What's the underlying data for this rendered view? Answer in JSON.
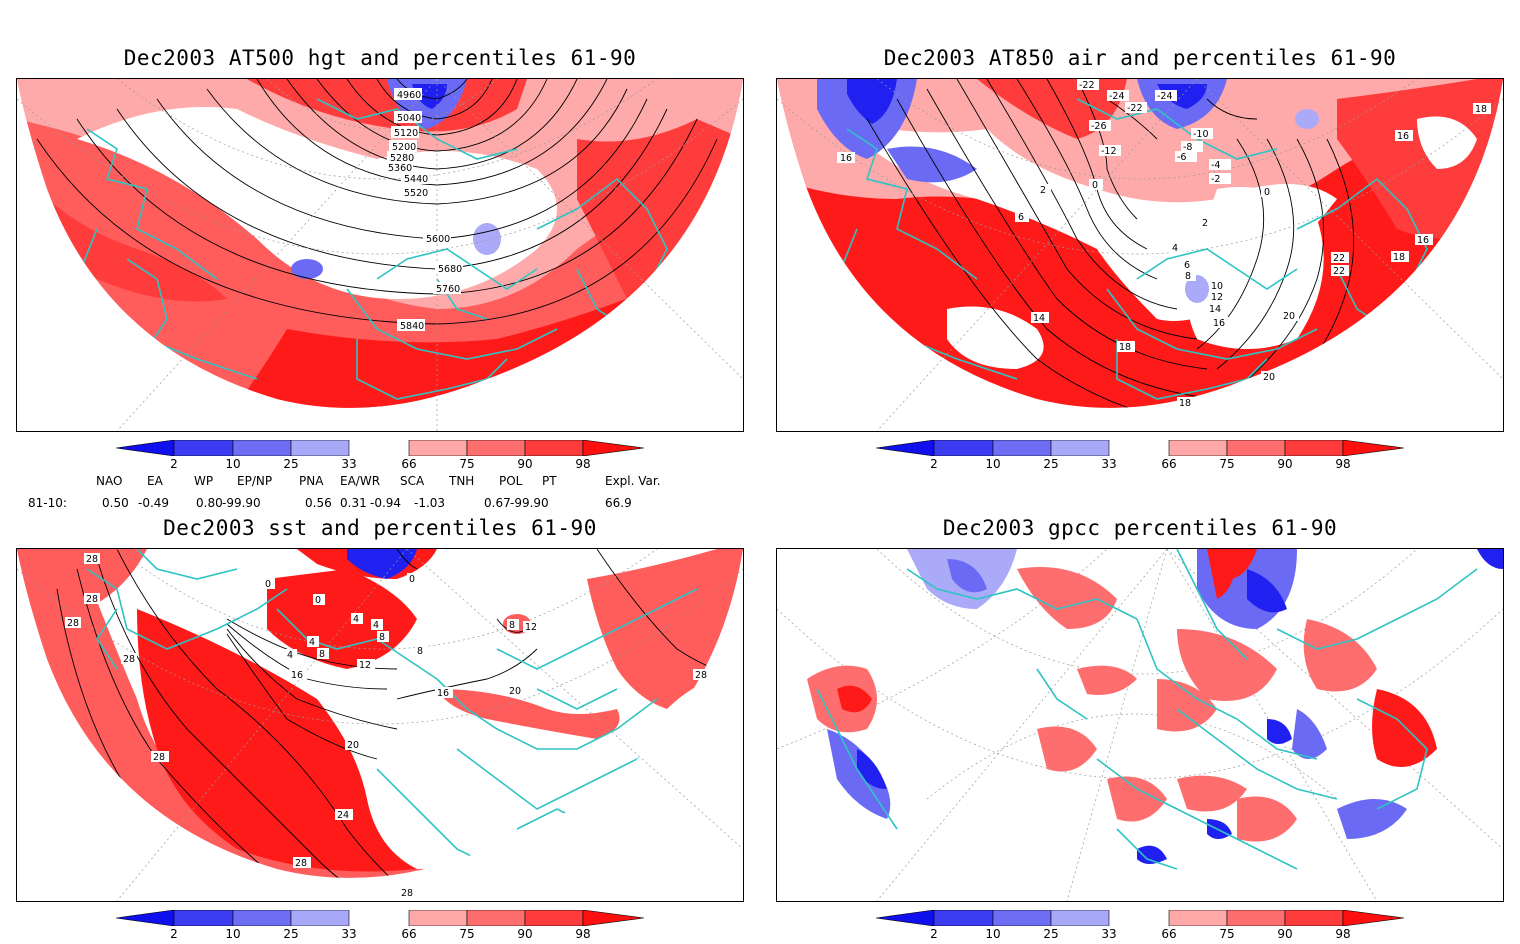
{
  "panels": [
    {
      "title": "Dec2003 AT500 hgt and percentiles 61-90",
      "contour_labels": [
        "4960",
        "5040",
        "5120",
        "5200",
        "5280",
        "5360",
        "5440",
        "5520",
        "5600",
        "5680",
        "5760",
        "5840"
      ]
    },
    {
      "title": "Dec2003 AT850 air and percentiles 61-90",
      "contour_labels": [
        "-22",
        "-24",
        "-24",
        "-22",
        "-26",
        "-12",
        "-10",
        "-8",
        "-6",
        "-4",
        "-2",
        "16",
        "2",
        "0",
        "6",
        "0",
        "2",
        "4",
        "6",
        "8",
        "10",
        "12",
        "14",
        "16",
        "18",
        "14",
        "18",
        "20",
        "22",
        "20",
        "22",
        "16",
        "18",
        "16",
        "18"
      ]
    },
    {
      "title": "Dec2003 sst and percentiles 61-90",
      "contour_labels": [
        "28",
        "28",
        "28",
        "28",
        "0",
        "0",
        "0",
        "4",
        "4",
        "4",
        "8",
        "8",
        "8",
        "12",
        "12",
        "4",
        "8",
        "16",
        "16",
        "20",
        "20",
        "24",
        "28",
        "28",
        "28",
        "28"
      ]
    },
    {
      "title": "Dec2003 gpcc percentiles 61-90",
      "contour_labels": []
    }
  ],
  "colorbar": {
    "ticks": [
      "2",
      "10",
      "25",
      "33",
      "66",
      "75",
      "90",
      "98"
    ],
    "colors": [
      "#1010ee",
      "#3c3cf0",
      "#6e6ef4",
      "#a8a8f8",
      "#ffffff",
      "#ffa8a8",
      "#ff6e6e",
      "#ff3c3c",
      "#ff1010"
    ]
  },
  "indices": {
    "headers": [
      "NAO",
      "EA",
      "WP",
      "EP/NP",
      "PNA",
      "EA/WR",
      "SCA",
      "TNH",
      "POL",
      "PT",
      "Expl. Var."
    ],
    "row_label": "81-10:",
    "values": [
      "0.50",
      "-0.49",
      "0.80",
      "-99.90",
      "0.56",
      "0.31",
      "-0.94",
      "-1.03",
      "0.67",
      "-99.90",
      "66.9"
    ]
  },
  "map_colors": {
    "coastline": "#2ec4c4",
    "red_strong": "#ff1a1a",
    "red_mid": "#ff5c5c",
    "red_light": "#ffaaaa",
    "blue_strong": "#2020f0",
    "blue_mid": "#6a6af5",
    "blue_light": "#aaaaf8",
    "contour": "#000000"
  }
}
